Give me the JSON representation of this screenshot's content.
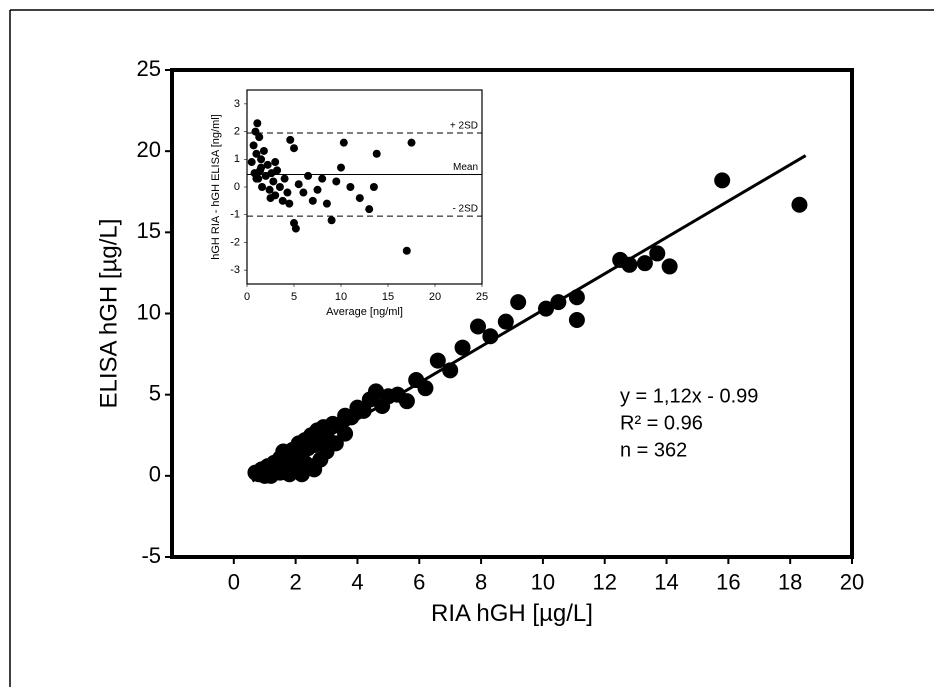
{
  "chart_data": [
    {
      "type": "scatter",
      "x_label": "RIA hGH [µg/L]",
      "y_label": "ELISA  hGH [µg/L]",
      "annotations": [
        "y = 1,12x - 0.99",
        "R² = 0.96",
        "n = 362"
      ],
      "xlim": [
        -2,
        20
      ],
      "xticks": [
        0,
        2,
        4,
        6,
        8,
        10,
        12,
        14,
        16,
        18,
        20
      ],
      "ylim": [
        -5,
        25
      ],
      "yticks": [
        -5,
        0,
        5,
        10,
        15,
        20,
        25
      ],
      "color": "#000000",
      "x": [
        0.7,
        0.8,
        0.9,
        1.0,
        1.1,
        1.2,
        1.3,
        1.4,
        1.5,
        1.6,
        1.7,
        1.8,
        1.9,
        2.0,
        2.1,
        2.2,
        2.3,
        2.4,
        2.5,
        2.6,
        2.7,
        2.8,
        2.9,
        3.0,
        3.2,
        3.4,
        3.6,
        3.8,
        4.0,
        4.2,
        4.4,
        4.6,
        4.8,
        5.0,
        5.3,
        5.6,
        5.9,
        6.2,
        6.6,
        7.0,
        7.4,
        7.9,
        8.3,
        8.8,
        9.2,
        10.1,
        10.5,
        11.1,
        11.1,
        12.5,
        12.8,
        13.3,
        13.7,
        14.1,
        15.8,
        18.3,
        1.2,
        1.5,
        1.8,
        2.0,
        2.2,
        2.5,
        2.8,
        3.0,
        3.3,
        3.6,
        1.0,
        1.6,
        2.3,
        2.6,
        0.9
      ],
      "values": [
        0.2,
        0.1,
        0.4,
        0.3,
        0.6,
        0.2,
        0.8,
        0.5,
        1.1,
        0.4,
        1.3,
        0.9,
        1.6,
        1.2,
        2.0,
        1.4,
        2.2,
        1.7,
        2.5,
        1.9,
        2.8,
        2.1,
        3.0,
        2.4,
        3.2,
        3.1,
        3.7,
        3.6,
        4.2,
        4.0,
        4.7,
        5.2,
        4.3,
        4.9,
        5.0,
        4.6,
        5.9,
        5.4,
        7.1,
        6.5,
        7.9,
        9.2,
        8.6,
        9.5,
        10.7,
        10.3,
        10.7,
        11.0,
        9.6,
        13.3,
        13.0,
        13.1,
        13.7,
        12.9,
        18.2,
        16.7,
        0.0,
        0.2,
        0.1,
        0.3,
        0.1,
        0.6,
        1.0,
        1.5,
        2.0,
        2.6,
        0.0,
        1.5,
        0.8,
        0.4,
        0.1
      ],
      "fit": {
        "x": [
          0.6,
          18.5
        ],
        "values": [
          -0.32,
          19.73
        ]
      }
    },
    {
      "type": "scatter",
      "x_label": "Average [ng/ml]",
      "y_label": "hGH RIA - hGH ELISA [ng/ml]",
      "xlim": [
        0,
        25
      ],
      "xticks": [
        0,
        5,
        10,
        15,
        20,
        25
      ],
      "ylim": [
        -3.5,
        3.5
      ],
      "yticks": [
        -3,
        -2,
        -1,
        0,
        1,
        2,
        3
      ],
      "color": "#000000",
      "x": [
        0.5,
        0.7,
        0.8,
        0.9,
        1.0,
        1.1,
        1.2,
        1.3,
        1.4,
        1.5,
        1.6,
        1.8,
        2.0,
        2.2,
        2.4,
        2.6,
        2.8,
        3.0,
        3.2,
        3.5,
        3.8,
        4.0,
        4.3,
        4.6,
        5.0,
        5.2,
        5.5,
        6.0,
        6.5,
        7.0,
        7.5,
        8.0,
        8.5,
        9.0,
        9.5,
        10.0,
        10.3,
        11.0,
        12.0,
        13.0,
        13.5,
        13.8,
        17.5,
        17.0,
        1.0,
        1.5,
        2.5,
        3.0,
        4.5,
        5.0
      ],
      "values": [
        0.9,
        1.5,
        0.5,
        2.0,
        1.2,
        2.3,
        0.3,
        1.8,
        0.6,
        1.0,
        0.0,
        1.3,
        0.4,
        0.8,
        -0.1,
        0.5,
        0.2,
        -0.3,
        0.6,
        0.0,
        -0.5,
        0.3,
        -0.2,
        1.7,
        -1.3,
        -1.5,
        0.1,
        -0.2,
        0.4,
        -0.5,
        -0.1,
        0.3,
        -0.6,
        -1.2,
        0.2,
        0.7,
        1.6,
        0.0,
        -0.4,
        -0.8,
        0.0,
        1.2,
        1.6,
        -2.3,
        0.3,
        0.7,
        -0.4,
        0.9,
        -0.6,
        1.4
      ],
      "hlines": [
        {
          "value": 1.95,
          "label": "+ 2SD",
          "dashed": true
        },
        {
          "value": 0.45,
          "label": "Mean",
          "dashed": false
        },
        {
          "value": -1.05,
          "label": "- 2SD",
          "dashed": true
        }
      ]
    }
  ]
}
